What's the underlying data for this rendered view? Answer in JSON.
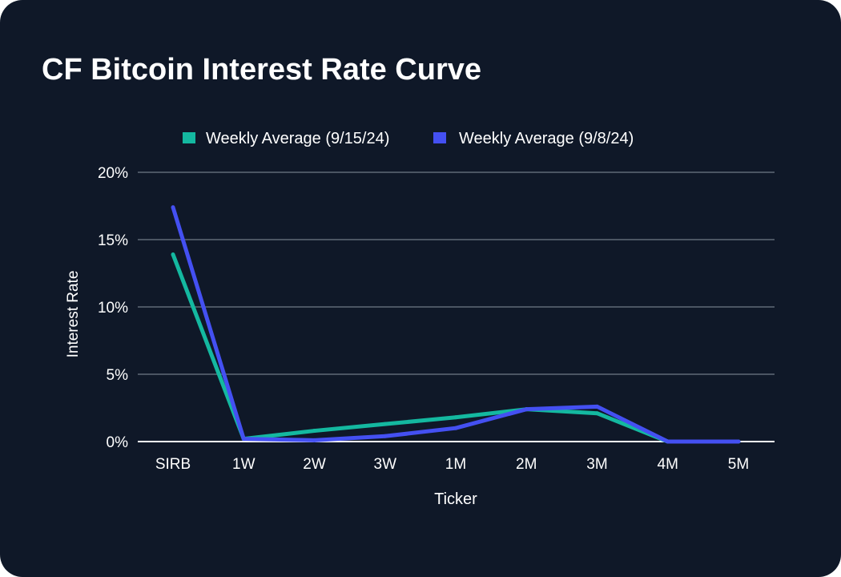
{
  "chart_data": {
    "type": "line",
    "title": "CF Bitcoin Interest Rate Curve",
    "xlabel": "Ticker",
    "ylabel": "Interest Rate",
    "categories": [
      "SIRB",
      "1W",
      "2W",
      "3W",
      "1M",
      "2M",
      "3M",
      "4M",
      "5M"
    ],
    "ylim": [
      0,
      20
    ],
    "yticks": [
      0,
      5,
      10,
      15,
      20
    ],
    "ytick_labels": [
      "0%",
      "5%",
      "10%",
      "15%",
      "20%"
    ],
    "grid": true,
    "legend_position": "top-center",
    "series": [
      {
        "name": "Weekly Average (9/15/24)",
        "color": "#14b8a0",
        "values": [
          13.9,
          0.2,
          0.8,
          1.3,
          1.8,
          2.4,
          2.1,
          0.0,
          0.0
        ]
      },
      {
        "name": "Weekly Average (9/8/24)",
        "color": "#4450f2",
        "values": [
          17.4,
          0.2,
          0.1,
          0.4,
          1.0,
          2.4,
          2.6,
          0.0,
          0.0
        ]
      }
    ]
  }
}
